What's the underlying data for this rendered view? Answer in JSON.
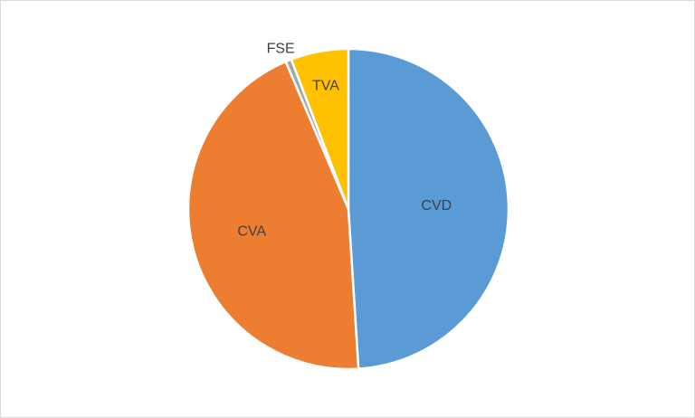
{
  "chart_data": {
    "type": "pie",
    "title": "",
    "legend": "none",
    "start_angle_deg": 0,
    "direction": "clockwise",
    "slices": [
      {
        "label": "CVD",
        "value": 49.0,
        "color": "#5B9BD5"
      },
      {
        "label": "CVA",
        "value": 44.6,
        "color": "#ED7D31"
      },
      {
        "label": "FSE",
        "value": 0.6,
        "color": "#A5A5A5"
      },
      {
        "label": "TVA",
        "value": 5.8,
        "color": "#FFC000"
      }
    ]
  }
}
